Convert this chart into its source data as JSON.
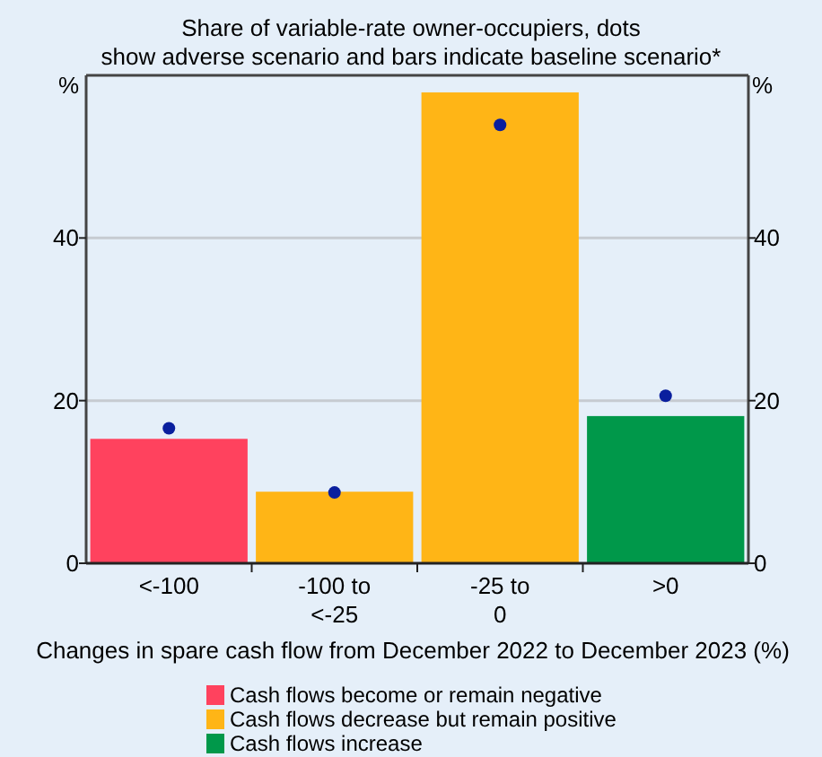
{
  "chart_data": {
    "type": "bar",
    "subtitle": "Share of variable-rate owner-occupiers, dots show adverse scenario and bars indicate baseline scenario*",
    "xlabel": "Changes in spare cash flow from December 2022 to December 2023 (%)",
    "ylabel": "%",
    "y2label": "%",
    "categories": [
      "<-100",
      "-100 to <-25",
      "-25 to 0",
      ">0"
    ],
    "stacked": true,
    "series": [
      {
        "name": "Cash flows become or remain negative",
        "color": "#ff425e",
        "values": [
          15.3,
          null,
          null,
          null
        ]
      },
      {
        "name": "Cash flows decrease but remain positive",
        "color": "#ffb516",
        "values": [
          null,
          8.8,
          57.9,
          null
        ]
      },
      {
        "name": "Cash flows increase",
        "color": "#00984a",
        "values": [
          null,
          null,
          null,
          18.1
        ]
      },
      {
        "type": "scatter",
        "color": "#0a1f9e",
        "x": [
          "<-100",
          "-100 to <-25",
          "-25 to 0",
          ">0"
        ],
        "values": [
          16.6,
          8.7,
          53.9,
          20.6
        ]
      }
    ],
    "ylim": [
      0,
      60
    ],
    "yticks": [
      0,
      20,
      40
    ],
    "y2lim": [
      0,
      60
    ],
    "y2ticks": [
      0,
      20,
      40
    ],
    "grid": "y",
    "legend": "bottom",
    "marker": "circle"
  }
}
